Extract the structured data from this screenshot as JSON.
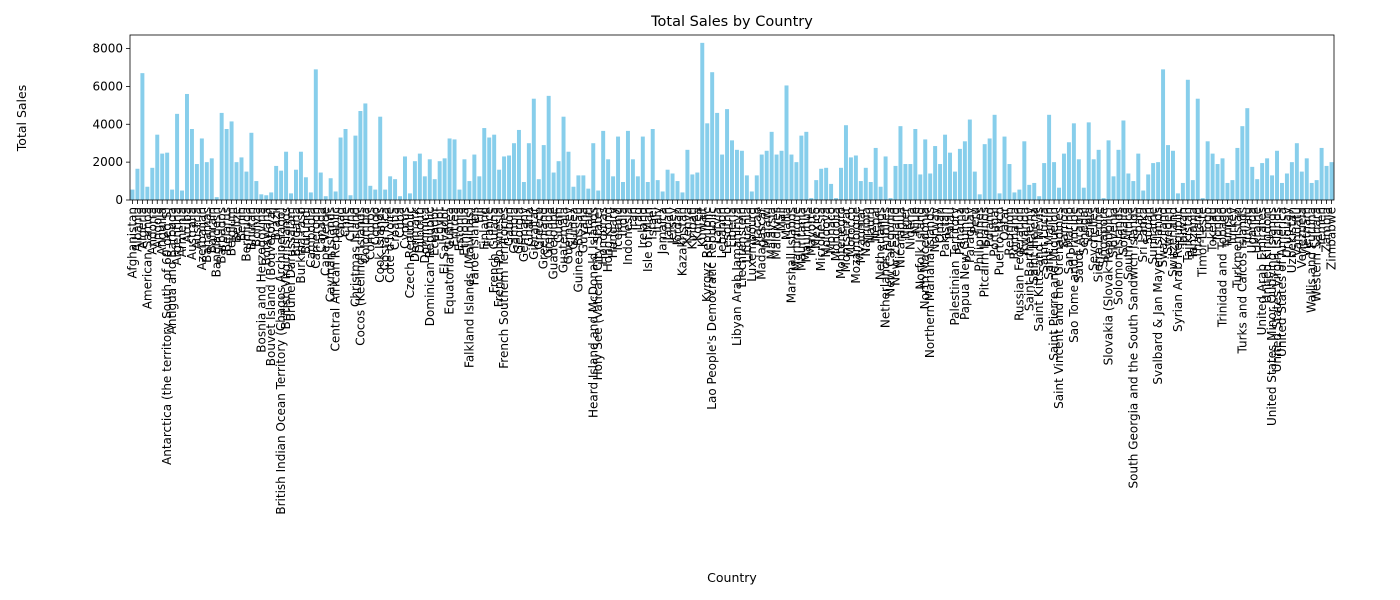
{
  "chart_data": {
    "type": "bar",
    "title": "Total Sales by Country",
    "x_label": "Country",
    "y_label": "Total Sales",
    "color": "#87ceeb",
    "categories": [
      "Afghanistan",
      "Albania",
      "Algeria",
      "American Samoa",
      "Andorra",
      "Angola",
      "Anguilla",
      "Antarctica (the territory South of 60 deg S)",
      "Antigua and Barbuda",
      "Argentina",
      "Armenia",
      "Aruba",
      "Australia",
      "Austria",
      "Azerbaijan",
      "Bahamas",
      "Bahrain",
      "Bangladesh",
      "Barbados",
      "Belarus",
      "Belgium",
      "Belize",
      "Benin",
      "Bermuda",
      "Bhutan",
      "Bolivia",
      "Bosnia and Herzegovina",
      "Botswana",
      "Bouvet Island (Bouvetoya)",
      "Brazil",
      "British Indian Ocean Territory (Chagos Archipelago)",
      "British Virgin Islands",
      "Brunei Darussalam",
      "Bulgaria",
      "Burkina Faso",
      "Burundi",
      "Cambodia",
      "Cameroon",
      "Canada",
      "Cape Verde",
      "Cayman Islands",
      "Central African Republic",
      "Chad",
      "Chile",
      "China",
      "Christmas Island",
      "Cocos (Keeling) Islands",
      "Colombia",
      "Comoros",
      "Congo",
      "Cook Islands",
      "Costa Rica",
      "Cote d'Ivoire",
      "Croatia",
      "Cuba",
      "Cyprus",
      "Czech Republic",
      "Denmark",
      "Djibouti",
      "Dominica",
      "Dominican Republic",
      "Ecuador",
      "Egypt",
      "El Salvador",
      "Equatorial Guinea",
      "Eritrea",
      "Estonia",
      "Ethiopia",
      "Falkland Islands (Malvinas)",
      "Faroe Islands",
      "Fiji",
      "Finland",
      "France",
      "French Guiana",
      "French Polynesia",
      "French Southern Territories",
      "Gabon",
      "Gambia",
      "Georgia",
      "Germany",
      "Ghana",
      "Gibraltar",
      "Greece",
      "Greenland",
      "Grenada",
      "Guadeloupe",
      "Guam",
      "Guatemala",
      "Guernsey",
      "Guinea",
      "Guinea-Bissau",
      "Guyana",
      "Haiti",
      "Heard Island and McDonald Islands",
      "Holy See (Vatican City State)",
      "Honduras",
      "Hong Kong",
      "Hungary",
      "Iceland",
      "India",
      "Indonesia",
      "Iran",
      "Iraq",
      "Ireland",
      "Isle of Man",
      "Israel",
      "Italy",
      "Jamaica",
      "Japan",
      "Jersey",
      "Jordan",
      "Kazakhstan",
      "Kenya",
      "Kiribati",
      "Korea",
      "Kuwait",
      "Kyrgyz Republic",
      "Lao People's Democratic Republic",
      "Latvia",
      "Lebanon",
      "Lesotho",
      "Liberia",
      "Libyan Arab Jamahiriya",
      "Liechtenstein",
      "Lithuania",
      "Luxembourg",
      "Macao",
      "Madagascar",
      "Malawi",
      "Malaysia",
      "Maldives",
      "Mali",
      "Malta",
      "Marshall Islands",
      "Martinique",
      "Mauritania",
      "Mauritius",
      "Mayotte",
      "Mexico",
      "Micronesia",
      "Moldova",
      "Monaco",
      "Mongolia",
      "Montenegro",
      "Montserrat",
      "Morocco",
      "Mozambique",
      "Myanmar",
      "Namibia",
      "Nauru",
      "Nepal",
      "Netherlands",
      "Netherlands Antilles",
      "New Caledonia",
      "New Zealand",
      "Nicaragua",
      "Niger",
      "Nigeria",
      "Niue",
      "Norfolk Island",
      "North Macedonia",
      "Northern Mariana Islands",
      "Norway",
      "Oman",
      "Pakistan",
      "Palau",
      "Palestinian Territory",
      "Panama",
      "Papua New Guinea",
      "Paraguay",
      "Peru",
      "Philippines",
      "Pitcairn Islands",
      "Poland",
      "Portugal",
      "Puerto Rico",
      "Qatar",
      "Reunion",
      "Romania",
      "Russian Federation",
      "Rwanda",
      "Saint Barthelemy",
      "Saint Helena",
      "Saint Kitts and Nevis",
      "Saint Lucia",
      "Saint Martin",
      "Saint Pierre and Miquelon",
      "Saint Vincent and the Grenadines",
      "Samoa",
      "San Marino",
      "Sao Tome and Principe",
      "Saudi Arabia",
      "Senegal",
      "Serbia",
      "Seychelles",
      "Sierra Leone",
      "Singapore",
      "Slovakia (Slovak Republic)",
      "Slovenia",
      "Solomon Islands",
      "Somalia",
      "South Africa",
      "South Georgia and the South Sandwich Islands",
      "Spain",
      "Sri Lanka",
      "Sudan",
      "Suriname",
      "Svalbard & Jan Mayen Islands",
      "Swaziland",
      "Sweden",
      "Switzerland",
      "Syrian Arab Republic",
      "Taiwan",
      "Tajikistan",
      "Tanzania",
      "Thailand",
      "Timor-Leste",
      "Togo",
      "Tokelau",
      "Tonga",
      "Trinidad and Tobago",
      "Tunisia",
      "Turkey",
      "Turkmenistan",
      "Turks and Caicos Islands",
      "Tuvalu",
      "Uganda",
      "Ukraine",
      "United Arab Emirates",
      "United Kingdom",
      "United States Minor Outlying Islands",
      "United States Virgin Islands",
      "United States of America",
      "Uruguay",
      "Uzbekistan",
      "Vanuatu",
      "Venezuela",
      "Vietnam",
      "Wallis and Futuna",
      "Western Sahara",
      "Yemen",
      "Zambia",
      "Zimbabwe"
    ],
    "values": [
      550,
      1650,
      6700,
      700,
      1700,
      3450,
      2450,
      2500,
      550,
      4550,
      500,
      5600,
      3750,
      1900,
      3250,
      2000,
      2200,
      150,
      4600,
      3750,
      4150,
      2000,
      2250,
      1500,
      3550,
      1000,
      300,
      250,
      400,
      1800,
      1550,
      2550,
      350,
      1600,
      2550,
      1200,
      400,
      6900,
      1450,
      200,
      1150,
      450,
      3300,
      3750,
      250,
      3400,
      4700,
      5100,
      750,
      550,
      4400,
      550,
      1250,
      1100,
      200,
      2300,
      350,
      2050,
      2450,
      1250,
      2150,
      1100,
      2050,
      2200,
      3250,
      3200,
      550,
      2150,
      1000,
      2400,
      1250,
      3800,
      3300,
      3450,
      1600,
      2300,
      2350,
      3000,
      3700,
      950,
      3000,
      5350,
      1100,
      2900,
      5500,
      1450,
      2050,
      4400,
      2550,
      700,
      1300,
      1300,
      600,
      3000,
      500,
      3650,
      2150,
      1250,
      3350,
      950,
      3650,
      2150,
      1250,
      3350,
      950,
      3750,
      1050,
      450,
      1600,
      1400,
      1000,
      400,
      2650,
      1350,
      1450,
      8300,
      4050,
      6750,
      4600,
      2400,
      4800,
      3150,
      2650,
      2600,
      1300,
      450,
      1300,
      2400,
      2600,
      3600,
      2400,
      2600,
      6050,
      2400,
      2000,
      3400,
      3600,
      100,
      1050,
      1650,
      1700,
      850,
      100,
      1700,
      3950,
      2250,
      2350,
      1000,
      1700,
      950,
      2750,
      700,
      2300,
      100,
      1800,
      3900,
      1900,
      1900,
      3750,
      1350,
      3200,
      1400,
      2850,
      1900,
      3450,
      2500,
      1500,
      2700,
      3100,
      4250,
      1500,
      300,
      2950,
      3250,
      4500,
      350,
      3350,
      1900,
      400,
      550,
      3100,
      800,
      900,
      200,
      1950,
      4500,
      2000,
      650,
      2450,
      3050,
      4050,
      2150,
      650,
      4100,
      2150,
      2650,
      100,
      3150,
      1250,
      2650,
      4200,
      1400,
      1000,
      2450,
      500,
      1350,
      1950,
      2000,
      6900,
      2900,
      2600,
      350,
      900,
      6350,
      1050,
      5350,
      100,
      3100,
      2450,
      1900,
      2200,
      900,
      1050,
      2750,
      3900,
      4850,
      1750,
      1100,
      1950,
      2200,
      1300,
      2600,
      900,
      1400,
      2000,
      3000,
      1500,
      2200,
      900,
      1050,
      2750,
      1800,
      2000
    ],
    "ylim": [
      0,
      8715
    ],
    "yticks": [
      0,
      2000,
      4000,
      6000,
      8000
    ]
  }
}
